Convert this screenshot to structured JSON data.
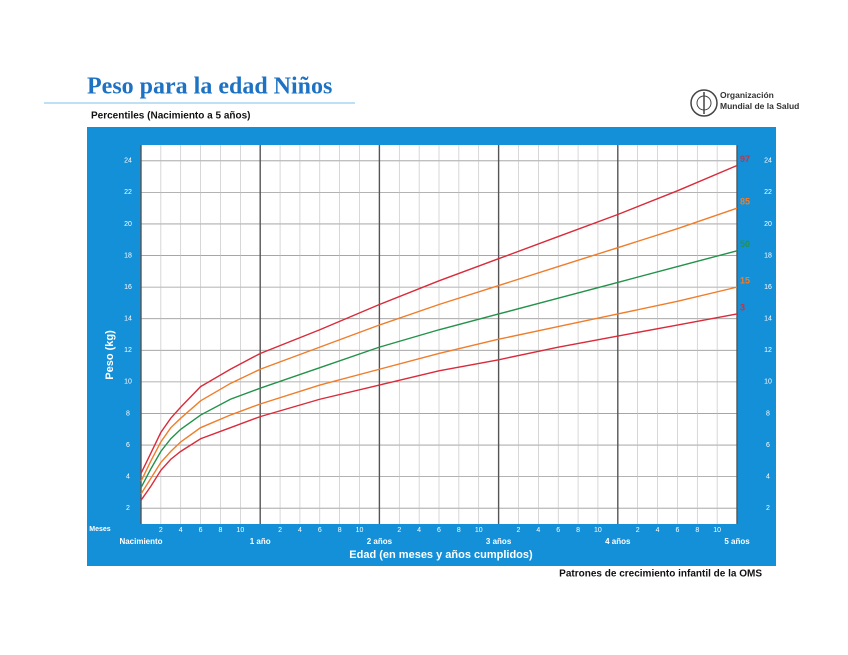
{
  "chart_data": {
    "type": "line",
    "title": "Peso para la edad Niños",
    "subtitle": "Percentiles (Nacimiento a 5 años)",
    "organization": "Organización Mundial de la Salud",
    "x_unit_label": "Meses",
    "xlabel": "Edad (en meses y años cumplidos)",
    "ylabel": "Peso (kg)",
    "footer": "Patrones de crecimiento infantil de la OMS",
    "x": [
      0,
      1,
      2,
      3,
      4,
      6,
      9,
      12,
      18,
      24,
      30,
      36,
      42,
      48,
      54,
      60
    ],
    "series": [
      {
        "name": "97",
        "color": "#d92b3a",
        "values": [
          4.2,
          5.5,
          6.8,
          7.7,
          8.4,
          9.7,
          10.8,
          11.8,
          13.3,
          14.9,
          16.4,
          17.8,
          19.2,
          20.6,
          22.1,
          23.7
        ]
      },
      {
        "name": "85",
        "color": "#f07d2a",
        "values": [
          3.7,
          5.0,
          6.2,
          7.1,
          7.7,
          8.8,
          9.9,
          10.8,
          12.2,
          13.6,
          14.9,
          16.1,
          17.3,
          18.5,
          19.7,
          21.0
        ]
      },
      {
        "name": "50",
        "color": "#23924a",
        "values": [
          3.3,
          4.5,
          5.6,
          6.4,
          7.0,
          7.9,
          8.9,
          9.6,
          10.9,
          12.2,
          13.3,
          14.3,
          15.3,
          16.3,
          17.3,
          18.3
        ]
      },
      {
        "name": "15",
        "color": "#f07d2a",
        "values": [
          2.9,
          3.9,
          4.9,
          5.6,
          6.2,
          7.1,
          7.9,
          8.6,
          9.8,
          10.8,
          11.8,
          12.7,
          13.5,
          14.3,
          15.1,
          16.0
        ]
      },
      {
        "name": "3",
        "color": "#d92b3a",
        "values": [
          2.5,
          3.4,
          4.4,
          5.1,
          5.6,
          6.4,
          7.1,
          7.8,
          8.9,
          9.8,
          10.7,
          11.4,
          12.2,
          12.9,
          13.6,
          14.3
        ]
      }
    ],
    "xlim": [
      0,
      60
    ],
    "xticks": [
      {
        "value": 0,
        "label": "Nacimiento"
      },
      {
        "value": 12,
        "label": "1 año"
      },
      {
        "value": 24,
        "label": "2 años"
      },
      {
        "value": 36,
        "label": "3 años"
      },
      {
        "value": 48,
        "label": "4 años"
      },
      {
        "value": 60,
        "label": "5 años"
      }
    ],
    "xticks_minor": [
      2,
      4,
      6,
      8,
      10,
      {
        "value": 14,
        "label": "2"
      },
      {
        "value": 16,
        "label": "4"
      },
      {
        "value": 18,
        "label": "6"
      },
      {
        "value": 20,
        "label": "8"
      },
      {
        "value": 22,
        "label": "10"
      },
      {
        "value": 26,
        "label": "2"
      },
      {
        "value": 28,
        "label": "4"
      },
      {
        "value": 30,
        "label": "6"
      },
      {
        "value": 32,
        "label": "8"
      },
      {
        "value": 34,
        "label": "10"
      },
      {
        "value": 38,
        "label": "2"
      },
      {
        "value": 40,
        "label": "4"
      },
      {
        "value": 42,
        "label": "6"
      },
      {
        "value": 44,
        "label": "8"
      },
      {
        "value": 46,
        "label": "10"
      },
      {
        "value": 50,
        "label": "2"
      },
      {
        "value": 52,
        "label": "4"
      },
      {
        "value": 54,
        "label": "6"
      },
      {
        "value": 56,
        "label": "8"
      },
      {
        "value": 58,
        "label": "10"
      }
    ],
    "ylim": [
      1,
      25
    ],
    "yticks": [
      2,
      4,
      6,
      8,
      10,
      12,
      14,
      16,
      18,
      20,
      22,
      24
    ],
    "grid": true
  }
}
